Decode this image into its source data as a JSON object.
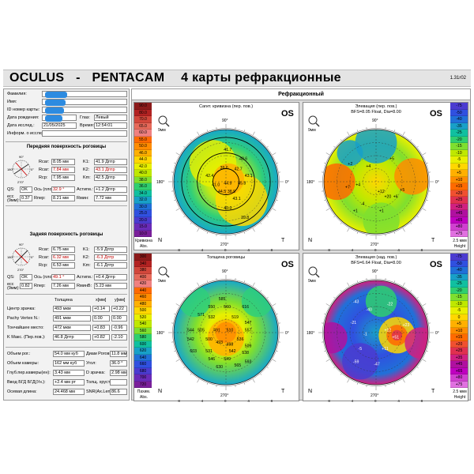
{
  "app": {
    "brand": "OCULUS",
    "dash": "-",
    "product": "PENTACAM",
    "view_title": "4 карты рефракционные",
    "version": "1.31r02"
  },
  "patient": {
    "surname_label": "Фамилия:",
    "name_label": "Имя:",
    "id_label": "ID номер карты:",
    "dob_label": "Дата рождения:",
    "eye_label": "Глаз:",
    "eye_value": "Левый",
    "exam_date_label": "Дата исслед.:",
    "exam_date_value": "21/05/2025",
    "time_label": "Время:",
    "time_value": "12:54:01",
    "info_label": "Информ. о исслед.:"
  },
  "front": {
    "title": "Передняя поверхность роговицы",
    "rows": [
      {
        "l1": "Rсаг:",
        "v1": "8.05 мм",
        "r1": false,
        "l2": "K1:",
        "v2": "41.9 Дптр",
        "r2": false
      },
      {
        "l1": "Rсаг:",
        "v1": "7.84 мм",
        "r1": true,
        "l2": "K2:",
        "v2": "43.1 Дптр",
        "r2": true
      },
      {
        "l1": "Rср:",
        "v1": "7.95 мм",
        "r1": false,
        "l2": "Km:",
        "v2": "42.5 Дптр",
        "r2": false
      }
    ],
    "qs_label": "QS:",
    "qs_value": "OK",
    "axis_label": "Ось (плоск.):",
    "axis_value": "32.9 °",
    "astig_label": "Астигм.:",
    "astig_value": "+1.2 Дптр",
    "ecc_label": "ecc (9мм):",
    "ecc_value": "0.37",
    "rper_label": "Rпер:",
    "rper_value": "8.21 мм",
    "rmin_label": "Rмин:",
    "rmin_value": "7.72 мм",
    "diagram": {
      "top": "90°",
      "left": "180°",
      "right": "0°",
      "bottom": "270°"
    }
  },
  "back": {
    "title": "Задняя поверхность роговицы",
    "rows": [
      {
        "l1": "Rсаг:",
        "v1": "6.75 мм",
        "r1": false,
        "l2": "K1:",
        "v2": "-5.9 Дптр",
        "r2": false
      },
      {
        "l1": "Rсаг:",
        "v1": "6.32 мм",
        "r1": true,
        "l2": "K2:",
        "v2": "-6.3 Дптр",
        "r2": true
      },
      {
        "l1": "Rср:",
        "v1": "6.53 мм",
        "r1": false,
        "l2": "Km:",
        "v2": "-6.1 Дптр",
        "r2": false
      }
    ],
    "qs_label": "QS:",
    "qs_value": "OK",
    "axis_label": "Ось (плоск.):",
    "axis_value": "49.1 °",
    "astig_label": "Астигм.:",
    "astig_value": "+0.4 Дптр",
    "ecc_label": "ecc (9мм):",
    "ecc_value": "0.82",
    "rper_label": "Rпер:",
    "rper_value": "7.26 мм",
    "rmin_label": "RминB:",
    "rmin_value": "5.23 мм",
    "diagram": {
      "top": "90°",
      "left": "180°",
      "right": "0°",
      "bottom": "270°"
    }
  },
  "pachy": {
    "col_thickness": "Толщина",
    "col_x": "x[мм]",
    "col_y": "y[мм]",
    "rows": [
      {
        "label": "Центр зрачка:",
        "t": "493 мкм",
        "x": "+0.14",
        "y": "+0.22"
      },
      {
        "label": "Pachy Vertex N.:",
        "t": "491 мкм",
        "x": "0.00",
        "y": "0.00"
      },
      {
        "label": "Тончайшее место:",
        "t": "472 мкм",
        "x": "+0.83",
        "y": "-0.96"
      },
      {
        "label": "K Макс. (Пер.пов.):",
        "t": "46.8 Дптр",
        "x": "+0.82",
        "y": "-2.10"
      }
    ]
  },
  "misc": {
    "rows": [
      {
        "l1": "Объем рог.:",
        "v1": "54.0 мм куб",
        "l2": "Диам Рогов.",
        "v2": "11.8 мм"
      },
      {
        "l1": "Объем камеры:",
        "v1": "162 мм куб",
        "l2": "Угол:",
        "v2": "36.0 °"
      },
      {
        "l1": "Глуб.пер.камеры(ен):",
        "v1": "3.43 мм",
        "l2": "D зрачка:",
        "v2": "2.98 мм"
      },
      {
        "l1": "Ввод БГД БГД(Ун.):",
        "v1": "+2.4 мм рт",
        "l2": "Толщ. хруст",
        "v2": ""
      },
      {
        "l1": "Осевая длина:",
        "v1": "24.468 мм",
        "l2": "SNR(Ax.Len):",
        "v2": "86.6"
      }
    ]
  },
  "maps": {
    "header": "Рефракционный",
    "sagittal": {
      "title": "Сагит. кривизна (пер. пов.)",
      "eye": "OS",
      "scale": [
        "90.0",
        "80.0",
        "70.0",
        "65.0",
        "60.0",
        "55.0",
        "50.0",
        "46.0",
        "44.0",
        "42.0",
        "40.0",
        "38.0",
        "36.0",
        "34.0",
        "32.0",
        "30.0",
        "25.0",
        "20.0",
        "15.0",
        "10.0"
      ],
      "scale_foot1": "Кривизна",
      "scale_foot2": "Abs.",
      "values": [
        "41.7",
        "43.6",
        "39.6",
        "42.7",
        "43.1",
        "42.4",
        "41.0",
        "44.9",
        "45.8",
        "44.5",
        "38.9",
        "43.1",
        "40.0",
        "39.8"
      ]
    },
    "elev_front": {
      "title": "Элевация (пер. пов.)",
      "subtitle": "BFS=8.05 Float, Dia=8.00",
      "eye": "OS",
      "scale": [
        "-75",
        "-50",
        "-40",
        "-35",
        "-25",
        "-20",
        "-15",
        "-10",
        "-5",
        "0",
        "+5",
        "+10",
        "+15",
        "+20",
        "+25",
        "+35",
        "+45",
        "+65",
        "+80",
        "+75"
      ],
      "scale_foot1": "2.5 мкм",
      "scale_foot2": "Height",
      "values": [
        "+2",
        "+4",
        "+5",
        "+7",
        "+4",
        "+12",
        "+20",
        "+5",
        "+6",
        "-4",
        "+1",
        "+1"
      ]
    },
    "pachy_map": {
      "title": "Толщина роговицы",
      "eye": "OS",
      "scale": [
        "300",
        "340",
        "380",
        "400",
        "420",
        "440",
        "460",
        "480",
        "500",
        "520",
        "540",
        "560",
        "580",
        "600",
        "620",
        "640",
        "660",
        "680",
        "700",
        "720"
      ],
      "scale_foot1": "Пахим.",
      "scale_foot2": "Abs.",
      "values": [
        "585",
        "550",
        "560",
        "616",
        "571",
        "532",
        "519",
        "547",
        "544",
        "505",
        "491",
        "510",
        "557",
        "542",
        "500",
        "536",
        "493",
        "498",
        "509",
        "603",
        "531",
        "542",
        "538",
        "546",
        "549",
        "630",
        "565",
        "593"
      ]
    },
    "elev_back": {
      "title": "Элевация (зад. пов.)",
      "subtitle": "BFS=6.64 Float, Dia=8.00",
      "eye": "OS",
      "scale": [
        "-75",
        "-50",
        "-40",
        "-35",
        "-25",
        "-20",
        "-15",
        "-10",
        "-5",
        "0",
        "+5",
        "+10",
        "+15",
        "+20",
        "+25",
        "+35",
        "+45",
        "+65",
        "+80",
        "+75"
      ],
      "scale_foot1": "2.5 мкм",
      "scale_foot2": "Height",
      "values": [
        "-43",
        "-40",
        "-22",
        "-21",
        "-1",
        "+12",
        "+23",
        "+51",
        "-5",
        "+11",
        "-47",
        "-59"
      ]
    },
    "nt": {
      "n": "N",
      "t": "T"
    },
    "mag": "9мм",
    "deg_top": "90°",
    "deg_left": "180°",
    "deg_right": "0°",
    "deg_bottom": "270°"
  },
  "colors": {
    "sagittal_scale": [
      "#8b1a1a",
      "#b22222",
      "#d2473b",
      "#e66a5a",
      "#f08080",
      "#ff6a00",
      "#ff8c00",
      "#ffb000",
      "#ffd700",
      "#e8f000",
      "#bfe800",
      "#7fdf2f",
      "#2fcf6f",
      "#10c0a0",
      "#18a0c8",
      "#2070d8",
      "#3050e0",
      "#4b3bd0",
      "#6a2bb8",
      "#7a1f9a"
    ],
    "elev_scale": [
      "#4b3bd0",
      "#3050e0",
      "#2070d8",
      "#18a0c8",
      "#10c0a0",
      "#2fcf6f",
      "#7fdf2f",
      "#bfe800",
      "#e8f000",
      "#ffd700",
      "#ffb000",
      "#ff8c00",
      "#ff6a00",
      "#f05030",
      "#e03050",
      "#d02080",
      "#b010a0",
      "#c000c0",
      "#d040d0",
      "#e070e0"
    ]
  }
}
